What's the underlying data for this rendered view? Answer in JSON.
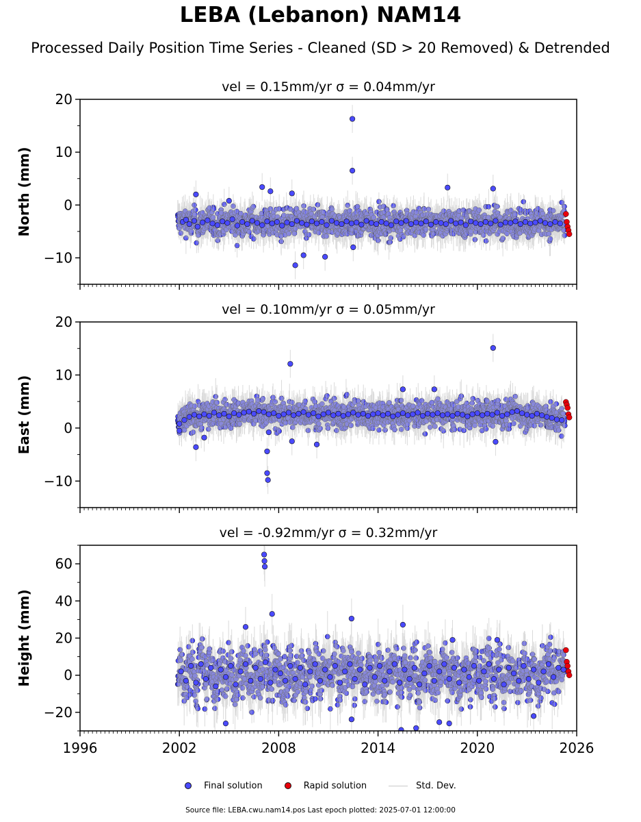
{
  "figure": {
    "title": "LEBA (Lebanon) NAM14",
    "subtitle": "Processed Daily Position Time Series - Cleaned (SD > 20 Removed) & Detrended",
    "footer": "Source file: LEBA.cwu.nam14.pos  Last epoch plotted: 2025-07-01 12:00:00",
    "colors": {
      "final": "#4a4aff",
      "rapid": "#e8000b",
      "stddev": "#bdbdbd",
      "marker_edge": "#111111"
    }
  },
  "legend": {
    "final": "Final solution",
    "rapid": "Rapid solution",
    "stddev": "Std. Dev."
  },
  "chart_data": [
    {
      "type": "scatter",
      "component": "north",
      "title": "vel = 0.15mm/yr   σ = 0.04mm/yr",
      "ylabel": "North (mm)",
      "xlim": [
        1996,
        2026
      ],
      "ylim": [
        -15,
        20
      ],
      "yticks": [
        -10,
        0,
        10,
        20
      ],
      "ytick_labels": [
        "−10",
        "0",
        "10",
        "20"
      ],
      "xticks": [
        1996,
        2002,
        2008,
        2014,
        2020,
        2026
      ],
      "show_xtick_labels": false,
      "grid": false,
      "data_start": 2001.9,
      "rapid_start": 2025.3,
      "data_end": 2025.55,
      "final_series": {
        "x": [
          2002.2,
          2002.4,
          2002.6,
          2002.9,
          2003.1,
          2003.4,
          2003.7,
          2004.0,
          2004.3,
          2004.6,
          2004.9,
          2005.2,
          2005.5,
          2005.8,
          2006.1,
          2006.4,
          2006.7,
          2007.0,
          2007.3,
          2007.6,
          2007.9,
          2008.2,
          2008.5,
          2008.8,
          2009.1,
          2009.4,
          2009.7,
          2010.0,
          2010.3,
          2010.6,
          2010.9,
          2011.2,
          2011.5,
          2011.8,
          2012.1,
          2012.4,
          2012.7,
          2013.0,
          2013.3,
          2013.6,
          2013.9,
          2014.2,
          2014.5,
          2014.8,
          2015.1,
          2015.4,
          2015.7,
          2016.0,
          2016.3,
          2016.6,
          2016.9,
          2017.2,
          2017.5,
          2017.8,
          2018.1,
          2018.4,
          2018.7,
          2019.0,
          2019.3,
          2019.6,
          2019.9,
          2020.2,
          2020.5,
          2020.8,
          2021.1,
          2021.4,
          2021.7,
          2022.0,
          2022.3,
          2022.6,
          2022.9,
          2023.2,
          2023.5,
          2023.8,
          2024.1,
          2024.4,
          2024.7,
          2025.0,
          2003.0,
          2005.0,
          2007.0,
          2007.5,
          2008.8,
          2009.0,
          2009.5,
          2010.8,
          2012.45,
          2012.45,
          2012.5,
          2018.2,
          2020.95
        ],
        "y": [
          -3.2,
          -2.8,
          -3.6,
          -3.0,
          -4.1,
          -3.3,
          -2.9,
          -3.5,
          -3.8,
          -3.1,
          -3.4,
          -2.7,
          -3.9,
          -3.2,
          -3.6,
          -3.0,
          -3.4,
          -3.8,
          -3.1,
          -3.5,
          -3.2,
          -3.9,
          -3.3,
          -3.6,
          -3.0,
          -3.4,
          -3.7,
          -3.1,
          -3.5,
          -3.2,
          -3.8,
          -3.0,
          -3.4,
          -3.6,
          -3.1,
          -3.5,
          -3.3,
          -3.7,
          -3.0,
          -3.4,
          -3.6,
          -3.2,
          -3.5,
          -3.8,
          -3.1,
          -3.4,
          -3.0,
          -3.6,
          -3.3,
          -3.5,
          -3.1,
          -3.7,
          -3.2,
          -3.4,
          -3.6,
          -3.0,
          -3.5,
          -3.3,
          -3.8,
          -3.1,
          -3.4,
          -3.6,
          -3.2,
          -3.5,
          -3.0,
          -3.7,
          -3.3,
          -3.4,
          -3.1,
          -3.6,
          -3.2,
          -3.5,
          -3.3,
          -3.0,
          -3.4,
          -3.6,
          -3.2,
          -3.5,
          2.0,
          0.8,
          3.4,
          2.6,
          2.2,
          -11.4,
          -9.5,
          -9.8,
          16.3,
          6.5,
          -8.0,
          3.3,
          3.1
        ]
      },
      "rapid_series": {
        "x": [
          2025.35,
          2025.4,
          2025.45,
          2025.5,
          2025.55
        ],
        "y": [
          -1.7,
          -3.2,
          -4.1,
          -4.8,
          -5.5
        ]
      }
    },
    {
      "type": "scatter",
      "component": "east",
      "title": "vel = 0.10mm/yr   σ = 0.05mm/yr",
      "ylabel": "East (mm)",
      "xlim": [
        1996,
        2026
      ],
      "ylim": [
        -15,
        20
      ],
      "yticks": [
        -10,
        0,
        10,
        20
      ],
      "ytick_labels": [
        "−10",
        "0",
        "10",
        "20"
      ],
      "xticks": [
        1996,
        2002,
        2008,
        2014,
        2020,
        2026
      ],
      "show_xtick_labels": false,
      "grid": false,
      "data_start": 2001.9,
      "rapid_start": 2025.3,
      "data_end": 2025.55,
      "final_series": {
        "x": [
          2002.0,
          2002.3,
          2002.6,
          2002.9,
          2003.2,
          2003.5,
          2003.8,
          2004.1,
          2004.4,
          2004.7,
          2005.0,
          2005.3,
          2005.6,
          2005.9,
          2006.2,
          2006.5,
          2006.8,
          2007.1,
          2007.4,
          2007.7,
          2008.0,
          2008.3,
          2008.6,
          2008.9,
          2009.2,
          2009.5,
          2009.8,
          2010.1,
          2010.4,
          2010.7,
          2011.0,
          2011.3,
          2011.6,
          2011.9,
          2012.2,
          2012.5,
          2012.8,
          2013.1,
          2013.4,
          2013.7,
          2014.0,
          2014.3,
          2014.6,
          2014.9,
          2015.2,
          2015.5,
          2015.8,
          2016.1,
          2016.4,
          2016.7,
          2017.0,
          2017.3,
          2017.6,
          2017.9,
          2018.2,
          2018.5,
          2018.8,
          2019.1,
          2019.4,
          2019.7,
          2020.0,
          2020.3,
          2020.6,
          2020.9,
          2021.2,
          2021.5,
          2021.8,
          2022.1,
          2022.4,
          2022.7,
          2023.0,
          2023.3,
          2023.6,
          2023.9,
          2024.2,
          2024.5,
          2024.8,
          2025.1,
          2002.0,
          2003.0,
          2003.5,
          2007.3,
          2007.3,
          2007.35,
          2007.4,
          2008.7,
          2008.8,
          2010.3,
          2015.5,
          2017.4,
          2020.95,
          2021.1
        ],
        "y": [
          0.8,
          1.5,
          2.1,
          2.5,
          2.2,
          2.6,
          2.3,
          2.9,
          2.4,
          2.7,
          2.2,
          2.8,
          2.5,
          2.9,
          3.1,
          2.7,
          3.2,
          3.0,
          2.6,
          2.8,
          2.3,
          2.6,
          2.9,
          2.4,
          2.7,
          3.0,
          2.5,
          2.8,
          2.2,
          2.6,
          2.9,
          2.4,
          2.7,
          2.3,
          2.6,
          2.9,
          2.5,
          2.7,
          2.3,
          2.6,
          2.8,
          2.4,
          2.7,
          2.2,
          2.5,
          2.8,
          2.4,
          2.6,
          2.9,
          2.3,
          2.7,
          2.5,
          2.8,
          2.4,
          2.6,
          2.3,
          2.7,
          2.5,
          2.2,
          2.6,
          2.8,
          2.4,
          2.7,
          2.5,
          2.9,
          2.3,
          2.6,
          3.0,
          3.2,
          2.8,
          2.5,
          2.3,
          2.7,
          2.4,
          2.1,
          1.9,
          1.6,
          1.5,
          -0.5,
          -3.6,
          -1.8,
          -4.4,
          -8.5,
          -9.8,
          -0.8,
          12.1,
          -2.5,
          -3.1,
          7.3,
          7.3,
          15.1,
          -2.6
        ]
      },
      "rapid_series": {
        "x": [
          2025.35,
          2025.4,
          2025.45,
          2025.5,
          2025.55
        ],
        "y": [
          4.9,
          4.4,
          3.8,
          2.6,
          2.0
        ]
      }
    },
    {
      "type": "scatter",
      "component": "height",
      "title": "vel = -0.92mm/yr   σ = 0.32mm/yr",
      "ylabel": "Height (mm)",
      "xlim": [
        1996,
        2026
      ],
      "ylim": [
        -30,
        70
      ],
      "yticks": [
        -20,
        0,
        20,
        40,
        60
      ],
      "ytick_labels": [
        "−20",
        "0",
        "20",
        "40",
        "60"
      ],
      "xticks": [
        1996,
        2002,
        2008,
        2014,
        2020,
        2026
      ],
      "xtick_labels": [
        "1996",
        "2002",
        "2008",
        "2014",
        "2020",
        "2026"
      ],
      "show_xtick_labels": true,
      "grid": false,
      "data_start": 2001.9,
      "rapid_start": 2025.3,
      "data_end": 2025.55,
      "final_series": {
        "x": [
          2002.1,
          2002.4,
          2002.7,
          2003.0,
          2003.3,
          2003.6,
          2003.9,
          2004.2,
          2004.5,
          2004.8,
          2005.1,
          2005.4,
          2005.7,
          2006.0,
          2006.3,
          2006.6,
          2006.9,
          2007.2,
          2007.5,
          2007.8,
          2008.1,
          2008.4,
          2008.7,
          2009.0,
          2009.3,
          2009.6,
          2009.9,
          2010.2,
          2010.5,
          2010.8,
          2011.1,
          2011.4,
          2011.7,
          2012.0,
          2012.3,
          2012.6,
          2012.9,
          2013.2,
          2013.5,
          2013.8,
          2014.1,
          2014.4,
          2014.7,
          2015.0,
          2015.3,
          2015.6,
          2015.9,
          2016.2,
          2016.5,
          2016.8,
          2017.1,
          2017.4,
          2017.7,
          2018.0,
          2018.3,
          2018.6,
          2018.9,
          2019.2,
          2019.5,
          2019.8,
          2020.1,
          2020.4,
          2020.7,
          2021.0,
          2021.3,
          2021.6,
          2021.9,
          2022.2,
          2022.5,
          2022.8,
          2023.1,
          2023.4,
          2023.7,
          2024.0,
          2024.3,
          2024.6,
          2024.9,
          2025.2,
          2007.12,
          2007.14,
          2007.16,
          2007.6,
          2012.4,
          2012.4,
          2015.5,
          2015.4,
          2016.3,
          2017.7,
          2018.3,
          2018.5,
          2021.2,
          2023.4,
          2004.8,
          2006.0
        ],
        "y": [
          2.0,
          -3.0,
          5.0,
          -4.0,
          6.0,
          -2.0,
          4.0,
          -6.0,
          3.0,
          -1.0,
          5.0,
          -5.0,
          2.0,
          6.0,
          -3.0,
          4.0,
          -2.0,
          7.0,
          -4.0,
          3.0,
          1.0,
          -3.0,
          5.0,
          -2.0,
          4.0,
          -5.0,
          2.0,
          6.0,
          -3.0,
          3.0,
          -1.0,
          5.0,
          -4.0,
          2.0,
          6.0,
          -2.0,
          3.0,
          -5.0,
          4.0,
          -1.0,
          5.0,
          -3.0,
          2.0,
          6.0,
          -4.0,
          3.0,
          -2.0,
          4.0,
          -5.0,
          1.0,
          5.0,
          -3.0,
          2.0,
          6.0,
          -2.0,
          4.0,
          -4.0,
          3.0,
          -1.0,
          5.0,
          -3.0,
          2.0,
          6.0,
          -2.0,
          3.0,
          -5.0,
          4.0,
          1.0,
          -3.0,
          5.0,
          -2.0,
          3.0,
          -4.0,
          2.0,
          6.0,
          -1.0,
          4.0,
          3.0,
          65.0,
          61.5,
          58.5,
          33.0,
          30.5,
          -23.8,
          27.2,
          -29.5,
          -28.5,
          -25.3,
          -26.0,
          19.0,
          19.0,
          -22.0,
          -26.0,
          26.0
        ]
      },
      "rapid_series": {
        "x": [
          2025.35,
          2025.4,
          2025.45,
          2025.5,
          2025.55
        ],
        "y": [
          13.5,
          7.2,
          5.0,
          2.0,
          0.0
        ]
      }
    }
  ]
}
